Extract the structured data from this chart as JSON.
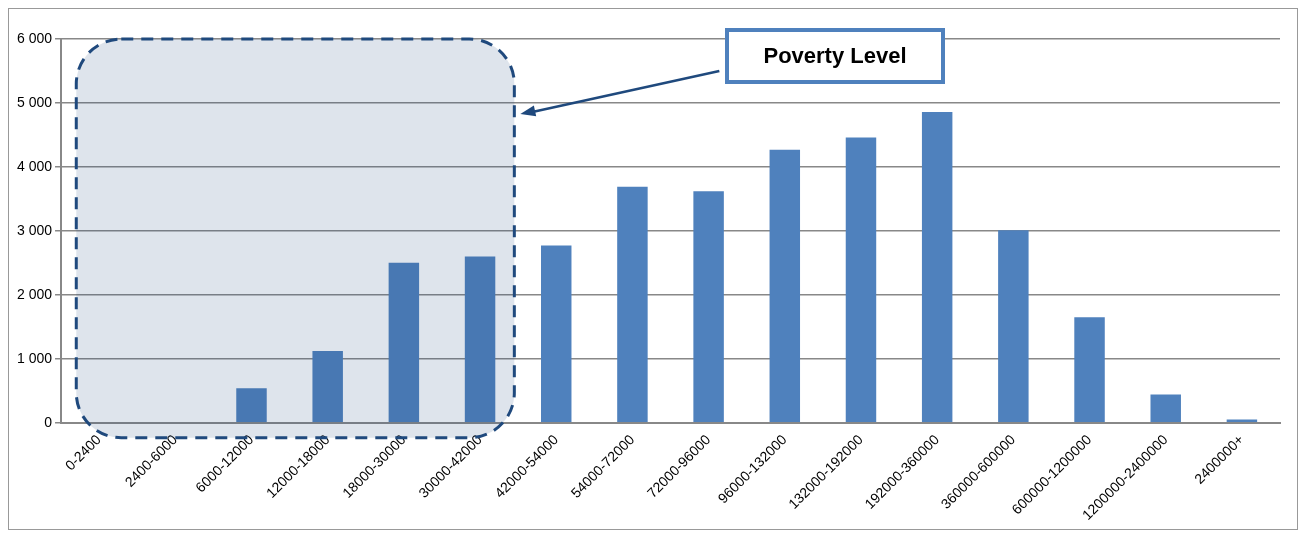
{
  "chart_data": {
    "type": "bar",
    "categories": [
      "0-2400",
      "2400-6000",
      "6000-12000",
      "12000-18000",
      "18000-30000",
      "30000-42000",
      "42000-54000",
      "54000-72000",
      "72000-96000",
      "96000-132000",
      "132000-192000",
      "192000-360000",
      "360000-600000",
      "600000-1200000",
      "1200000-2400000",
      "2400000+"
    ],
    "values": [
      0,
      0,
      540,
      1120,
      2500,
      2600,
      2770,
      3690,
      3620,
      4270,
      4460,
      4860,
      3010,
      1650,
      440,
      50
    ],
    "color": "#4f81bd",
    "ylim": [
      0,
      6000
    ],
    "yticks": [
      0,
      {
        "value": 1000,
        "label": "1 000"
      },
      {
        "value": 2000,
        "label": "2 000"
      },
      {
        "value": 3000,
        "label": "3 000"
      },
      {
        "value": 4000,
        "label": "4 000"
      },
      {
        "value": 5000,
        "label": "5 000"
      },
      {
        "value": 6000,
        "label": "6 000"
      }
    ],
    "grid": "y",
    "legend": false,
    "annotations": [
      "Poverty Level"
    ],
    "bands": [
      {
        "axis": "x",
        "from": "0-2400",
        "to": "30000-42000",
        "color": "#1f497d"
      }
    ]
  }
}
